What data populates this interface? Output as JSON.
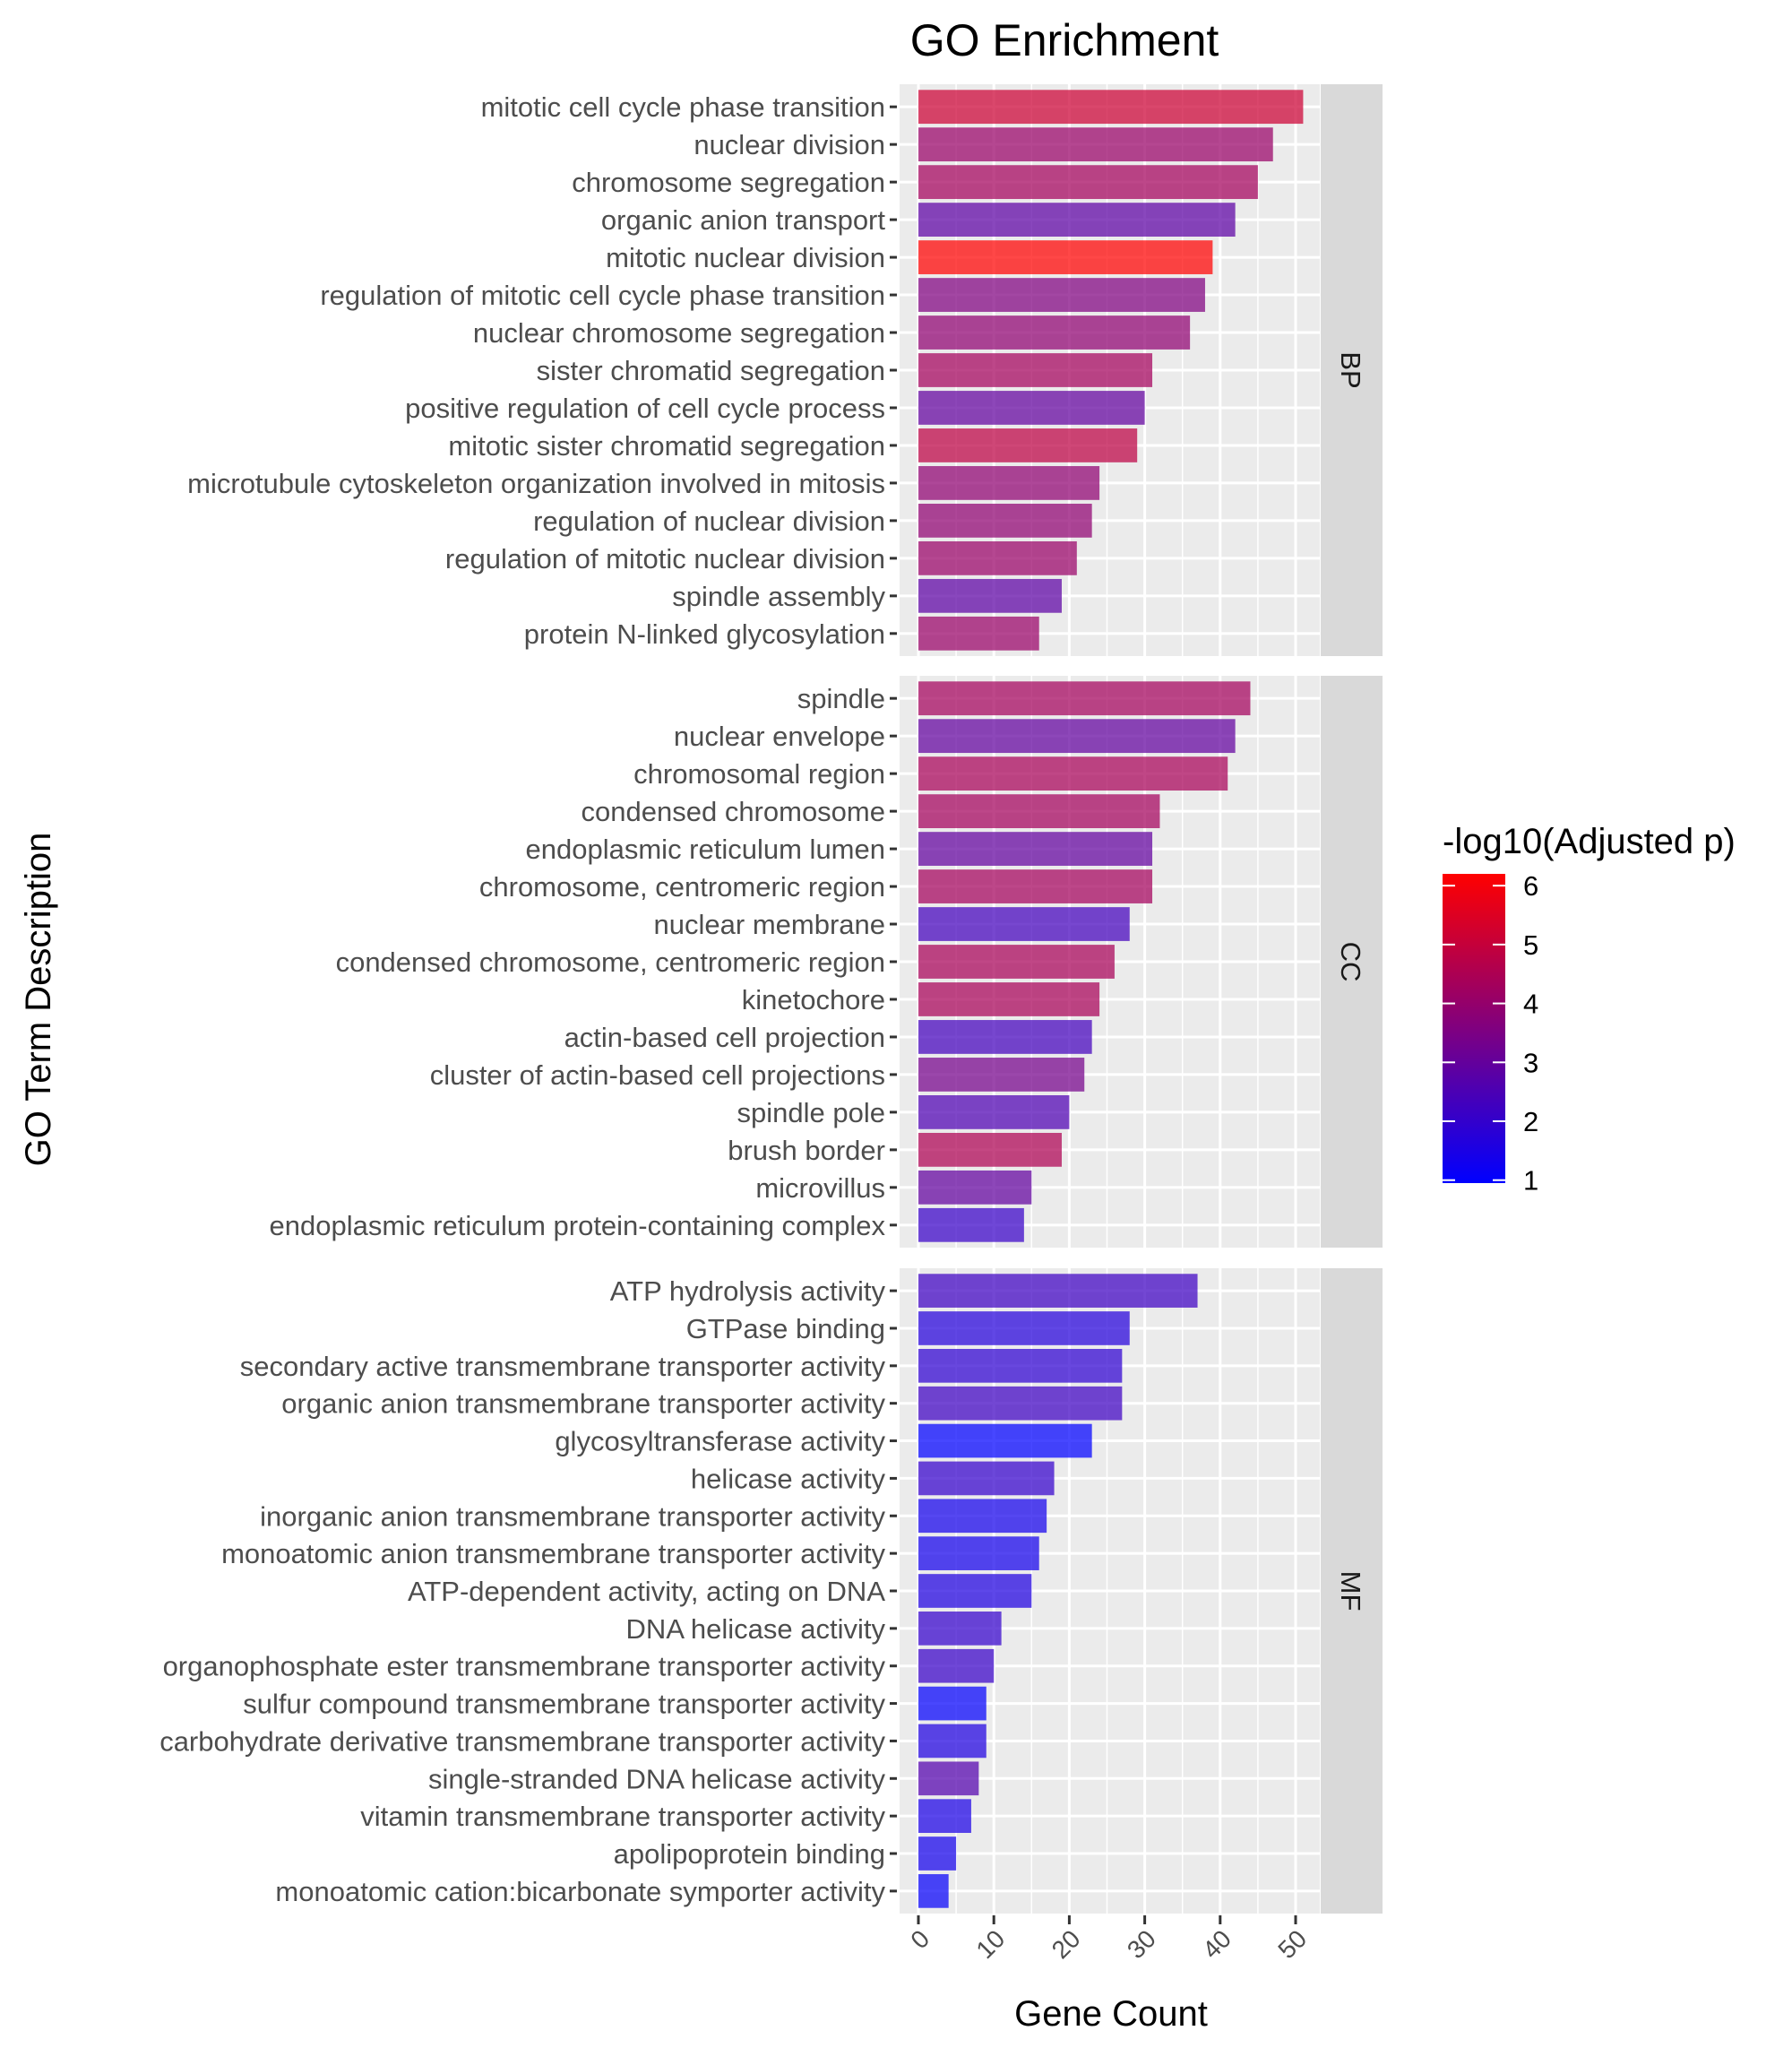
{
  "chart_data": {
    "type": "bar",
    "orientation": "horizontal",
    "title": "GO Enrichment",
    "xlabel": "Gene Count",
    "ylabel": "GO Term Description",
    "xlim": [
      0,
      53.5
    ],
    "xticks": [
      0,
      10,
      20,
      30,
      40,
      50
    ],
    "xtick_labels": [
      "0",
      "10",
      "20",
      "30",
      "40",
      "50"
    ],
    "xtick_rotation": 45,
    "grid": true,
    "facet_by": "ontology",
    "color_legend": {
      "title": "-log10(Adjusted p)",
      "range": [
        1,
        6
      ],
      "ticks": [
        1,
        2,
        3,
        4,
        5,
        6
      ],
      "tick_labels": [
        "1",
        "2",
        "3",
        "4",
        "5",
        "6"
      ],
      "low_color": "#0000FF",
      "high_color": "#FF0000",
      "placement": "right"
    },
    "facets": [
      {
        "name": "BP",
        "categories": [
          "mitotic cell cycle phase transition",
          "nuclear division",
          "chromosome segregation",
          "organic anion transport",
          "mitotic nuclear division",
          "regulation of mitotic cell cycle phase transition",
          "nuclear chromosome segregation",
          "sister chromatid segregation",
          "positive regulation of cell cycle process",
          "mitotic sister chromatid segregation",
          "microtubule cytoskeleton organization involved in mitosis",
          "regulation of nuclear division",
          "regulation of mitotic nuclear division",
          "spindle assembly",
          "protein N-linked glycosylation"
        ],
        "values": [
          51,
          47,
          45,
          42,
          39,
          38,
          36,
          31,
          30,
          29,
          24,
          23,
          21,
          19,
          16
        ],
        "neglog10_padj": [
          5.0,
          4.0,
          4.2,
          2.8,
          6.0,
          3.5,
          3.8,
          4.2,
          2.9,
          4.7,
          3.8,
          3.8,
          4.0,
          2.8,
          4.0
        ]
      },
      {
        "name": "CC",
        "categories": [
          "spindle",
          "nuclear envelope",
          "chromosomal region",
          "condensed chromosome",
          "endoplasmic reticulum lumen",
          "chromosome, centromeric region",
          "nuclear membrane",
          "condensed chromosome, centromeric region",
          "kinetochore",
          "actin-based cell projection",
          "cluster of actin-based cell projections",
          "spindle pole",
          "brush border",
          "microvillus",
          "endoplasmic reticulum protein-containing complex"
        ],
        "values": [
          44,
          42,
          41,
          32,
          31,
          31,
          28,
          26,
          24,
          23,
          22,
          20,
          19,
          15,
          14
        ],
        "neglog10_padj": [
          4.2,
          2.9,
          4.3,
          4.2,
          2.9,
          4.2,
          2.3,
          4.3,
          4.3,
          2.3,
          3.3,
          2.5,
          4.4,
          2.9,
          2.1
        ]
      },
      {
        "name": "MF",
        "categories": [
          "ATP hydrolysis activity",
          "GTPase binding",
          "secondary active transmembrane transporter activity",
          "organic anion transmembrane transporter activity",
          "glycosyltransferase activity",
          "helicase activity",
          "inorganic anion transmembrane transporter activity",
          "monoatomic anion transmembrane transporter activity",
          "ATP-dependent activity, acting on DNA",
          "DNA helicase activity",
          "organophosphate ester transmembrane transporter activity",
          "sulfur compound transmembrane transporter activity",
          "carbohydrate derivative transmembrane transporter activity",
          "single-stranded DNA helicase activity",
          "vitamin transmembrane transporter activity",
          "apolipoprotein binding",
          "monoatomic cation:bicarbonate symporter activity"
        ],
        "values": [
          37,
          28,
          27,
          27,
          23,
          18,
          17,
          16,
          15,
          11,
          10,
          9,
          9,
          8,
          7,
          5,
          4
        ],
        "neglog10_padj": [
          2.2,
          1.7,
          1.9,
          2.2,
          1.0,
          2.0,
          1.4,
          1.4,
          1.6,
          2.0,
          2.1,
          1.05,
          1.6,
          2.6,
          1.5,
          1.4,
          1.1
        ]
      }
    ]
  },
  "colors": {
    "panel_background": "#EBEBEB",
    "strip_background": "#D9D9D9",
    "grid": "#FFFFFF",
    "axis_text": "#4D4D4D"
  }
}
